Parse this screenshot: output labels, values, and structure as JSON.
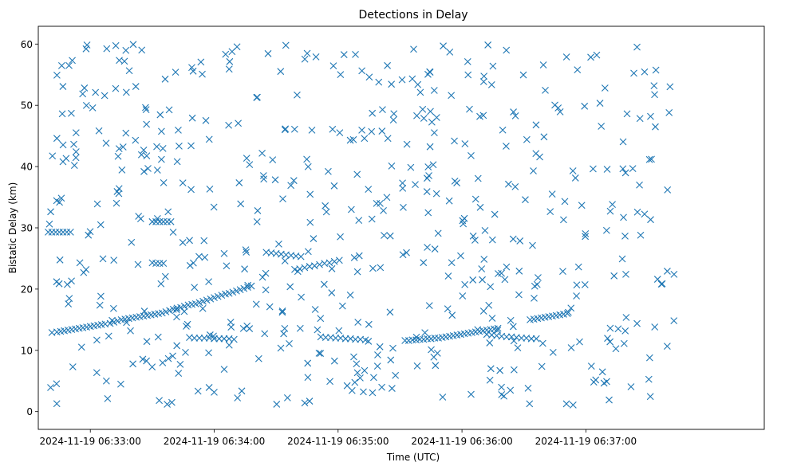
{
  "chart_data": {
    "type": "scatter",
    "title": "Detections in Delay",
    "xlabel": "Time (UTC)",
    "ylabel": "Bistatic Delay (km)",
    "marker": "x",
    "color": "#1f77b4",
    "xlim": [
      -0.42,
      5.44
    ],
    "ylim": [
      -2.9,
      62.9
    ],
    "x_unit": "minutes after 2024-11-19 06:33:00",
    "xticks": [
      {
        "value": 0,
        "label": "2024-11-19 06:33:00"
      },
      {
        "value": 1,
        "label": "2024-11-19 06:34:00"
      },
      {
        "value": 2,
        "label": "2024-11-19 06:35:00"
      },
      {
        "value": 3,
        "label": "2024-11-19 06:36:00"
      },
      {
        "value": 4,
        "label": "2024-11-19 06:37:00"
      }
    ],
    "yticks": [
      {
        "value": 0,
        "label": "0"
      },
      {
        "value": 10,
        "label": "10"
      },
      {
        "value": 20,
        "label": "20"
      },
      {
        "value": 30,
        "label": "30"
      },
      {
        "value": 40,
        "label": "40"
      },
      {
        "value": 50,
        "label": "50"
      },
      {
        "value": 60,
        "label": "60"
      }
    ],
    "track_points": [
      [
        -0.31,
        12.9
      ],
      [
        -0.27,
        13.0
      ],
      [
        -0.24,
        13.1
      ],
      [
        -0.21,
        13.2
      ],
      [
        -0.18,
        13.3
      ],
      [
        -0.15,
        13.4
      ],
      [
        -0.12,
        13.5
      ],
      [
        -0.09,
        13.6
      ],
      [
        -0.06,
        13.7
      ],
      [
        -0.03,
        13.8
      ],
      [
        0.0,
        13.9
      ],
      [
        0.03,
        14.0
      ],
      [
        0.06,
        14.1
      ],
      [
        0.09,
        14.2
      ],
      [
        0.12,
        14.3
      ],
      [
        0.16,
        14.4
      ],
      [
        0.19,
        14.6
      ],
      [
        0.22,
        14.8
      ],
      [
        0.25,
        15.0
      ],
      [
        0.28,
        15.1
      ],
      [
        0.31,
        15.2
      ],
      [
        0.34,
        15.3
      ],
      [
        0.37,
        15.4
      ],
      [
        0.4,
        15.5
      ],
      [
        0.43,
        15.6
      ],
      [
        0.46,
        15.7
      ],
      [
        0.49,
        15.8
      ],
      [
        0.52,
        15.9
      ],
      [
        0.55,
        16.0
      ],
      [
        0.58,
        16.1
      ],
      [
        0.61,
        16.3
      ],
      [
        0.64,
        16.5
      ],
      [
        0.67,
        16.7
      ],
      [
        0.7,
        16.9
      ],
      [
        0.73,
        17.0
      ],
      [
        0.76,
        17.2
      ],
      [
        0.79,
        17.4
      ],
      [
        0.82,
        17.5
      ],
      [
        0.85,
        17.6
      ],
      [
        0.88,
        17.8
      ],
      [
        0.91,
        18.0
      ],
      [
        0.94,
        18.2
      ],
      [
        0.97,
        18.4
      ],
      [
        1.0,
        18.6
      ],
      [
        1.03,
        18.8
      ],
      [
        1.06,
        19.0
      ],
      [
        1.09,
        19.2
      ],
      [
        1.12,
        19.3
      ],
      [
        1.15,
        19.5
      ],
      [
        1.18,
        19.7
      ],
      [
        1.21,
        19.9
      ],
      [
        1.24,
        20.1
      ],
      [
        1.27,
        20.3
      ],
      [
        1.3,
        20.5
      ],
      [
        -0.34,
        29.3
      ],
      [
        -0.31,
        29.3
      ],
      [
        -0.28,
        29.3
      ],
      [
        -0.25,
        29.3
      ],
      [
        -0.22,
        29.3
      ],
      [
        -0.19,
        29.3
      ],
      [
        -0.16,
        29.3
      ],
      [
        0.5,
        31.0
      ],
      [
        0.53,
        31.0
      ],
      [
        0.56,
        31.0
      ],
      [
        0.59,
        31.0
      ],
      [
        0.62,
        31.0
      ],
      [
        0.65,
        31.0
      ],
      [
        0.5,
        24.3
      ],
      [
        0.53,
        24.2
      ],
      [
        0.56,
        24.2
      ],
      [
        0.59,
        24.2
      ],
      [
        0.8,
        12.1
      ],
      [
        0.84,
        12.0
      ],
      [
        0.88,
        12.0
      ],
      [
        0.92,
        12.0
      ],
      [
        0.96,
        12.0
      ],
      [
        1.0,
        11.9
      ],
      [
        1.04,
        11.9
      ],
      [
        1.08,
        11.9
      ],
      [
        1.12,
        11.9
      ],
      [
        1.16,
        11.8
      ],
      [
        1.42,
        26.0
      ],
      [
        1.46,
        25.9
      ],
      [
        1.5,
        25.8
      ],
      [
        1.54,
        25.7
      ],
      [
        1.58,
        25.6
      ],
      [
        1.62,
        25.5
      ],
      [
        1.66,
        25.4
      ],
      [
        1.7,
        25.3
      ],
      [
        1.65,
        23.2
      ],
      [
        1.69,
        23.3
      ],
      [
        1.73,
        23.5
      ],
      [
        1.77,
        23.7
      ],
      [
        1.81,
        23.8
      ],
      [
        1.85,
        24.0
      ],
      [
        1.89,
        24.2
      ],
      [
        1.93,
        24.3
      ],
      [
        1.97,
        24.5
      ],
      [
        2.01,
        24.7
      ],
      [
        1.86,
        12.2
      ],
      [
        1.9,
        12.1
      ],
      [
        1.94,
        12.1
      ],
      [
        1.98,
        12.0
      ],
      [
        2.02,
        12.0
      ],
      [
        2.06,
        11.9
      ],
      [
        2.1,
        11.9
      ],
      [
        2.14,
        11.8
      ],
      [
        2.18,
        11.8
      ],
      [
        2.22,
        11.7
      ],
      [
        2.54,
        11.6
      ],
      [
        2.57,
        11.6
      ],
      [
        2.6,
        11.7
      ],
      [
        2.63,
        11.7
      ],
      [
        2.66,
        11.8
      ],
      [
        2.69,
        11.8
      ],
      [
        2.72,
        11.9
      ],
      [
        2.75,
        11.9
      ],
      [
        2.78,
        12.0
      ],
      [
        2.81,
        12.0
      ],
      [
        2.84,
        12.1
      ],
      [
        2.87,
        12.2
      ],
      [
        2.9,
        12.3
      ],
      [
        2.93,
        12.4
      ],
      [
        2.96,
        12.5
      ],
      [
        2.99,
        12.6
      ],
      [
        3.02,
        12.7
      ],
      [
        3.05,
        12.8
      ],
      [
        3.08,
        12.9
      ],
      [
        3.11,
        13.0
      ],
      [
        3.14,
        13.1
      ],
      [
        3.17,
        13.2
      ],
      [
        3.2,
        13.3
      ],
      [
        3.23,
        13.4
      ],
      [
        3.26,
        13.5
      ],
      [
        3.29,
        13.6
      ],
      [
        3.2,
        12.6
      ],
      [
        3.24,
        12.5
      ],
      [
        3.28,
        12.4
      ],
      [
        3.32,
        12.3
      ],
      [
        3.36,
        12.2
      ],
      [
        3.4,
        12.2
      ],
      [
        3.44,
        12.1
      ],
      [
        3.48,
        12.0
      ],
      [
        3.52,
        12.0
      ],
      [
        3.56,
        11.9
      ],
      [
        3.6,
        11.9
      ],
      [
        3.55,
        15.0
      ],
      [
        3.58,
        15.1
      ],
      [
        3.61,
        15.2
      ],
      [
        3.64,
        15.3
      ],
      [
        3.67,
        15.4
      ],
      [
        3.7,
        15.5
      ],
      [
        3.73,
        15.6
      ],
      [
        3.76,
        15.7
      ],
      [
        3.79,
        15.8
      ],
      [
        3.82,
        15.9
      ],
      [
        3.85,
        16.0
      ]
    ],
    "scatter_seed": 20241119,
    "scatter_count": 560,
    "note": "track_points are the readable near-linear detection tracks; the remaining detections are uniformly scattered clutter reproduced with a seeded generator over the axis window."
  }
}
